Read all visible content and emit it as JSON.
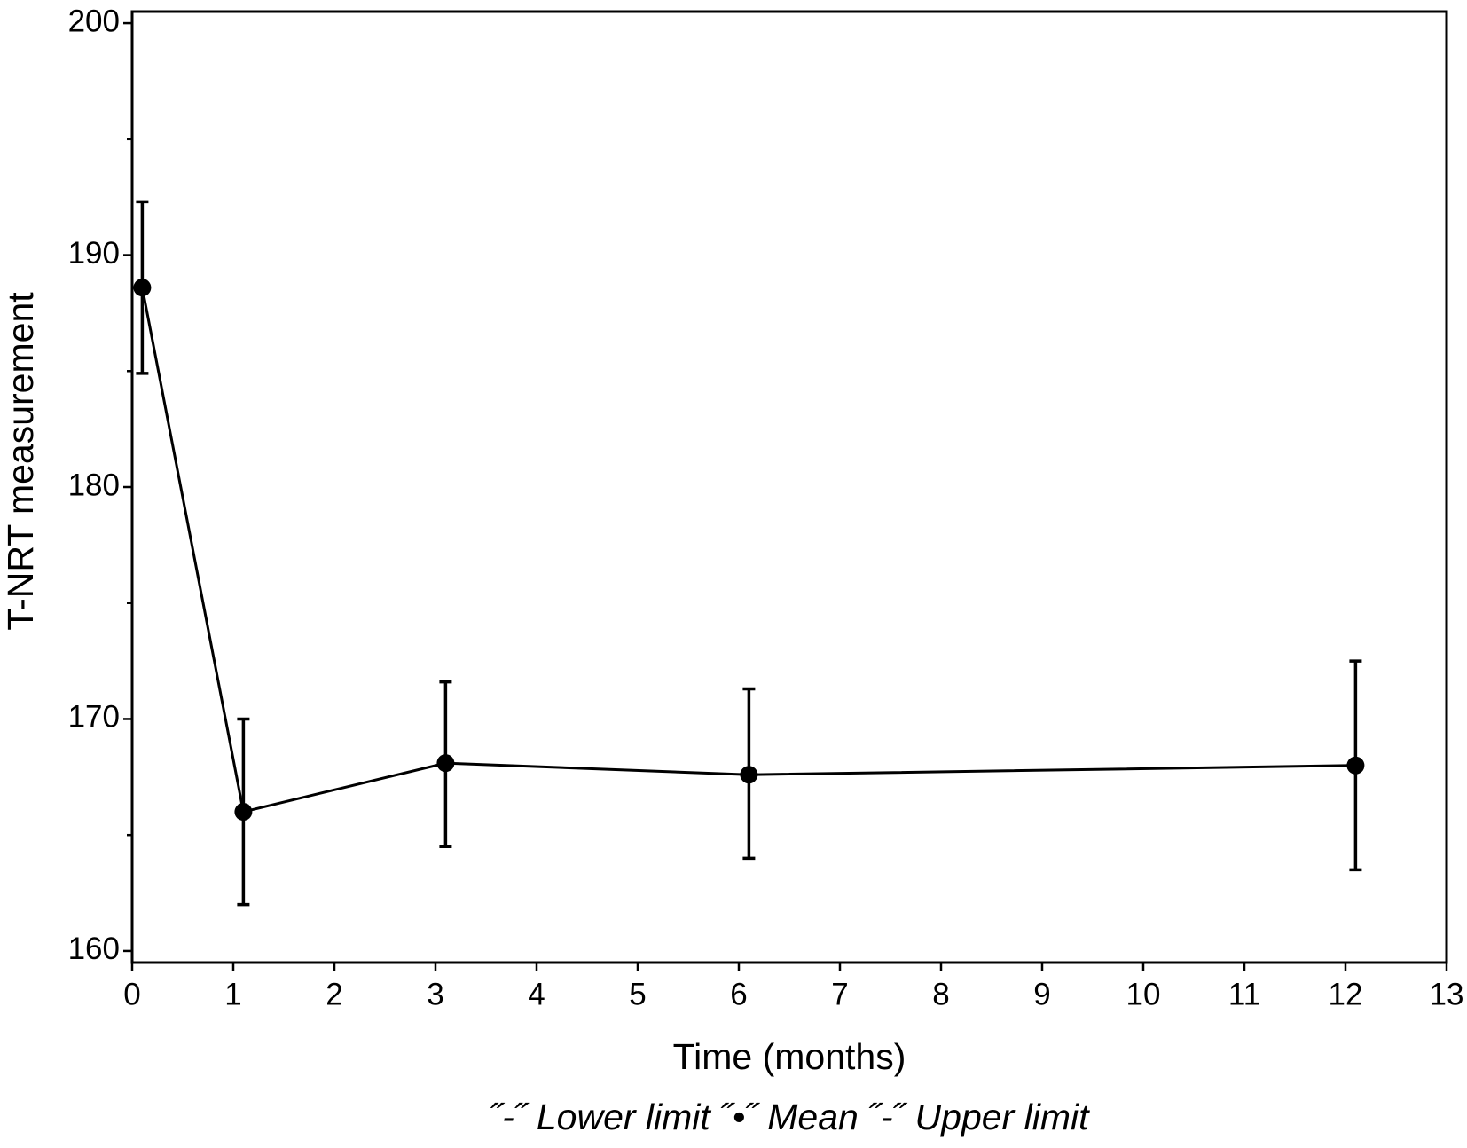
{
  "chart_data": {
    "type": "line",
    "x_label": "Time (months)",
    "y_label": "T-NRT measurement",
    "annotation": "˝-˝ Lower limit ˝•˝ Mean ˝-˝ Upper limit",
    "x": [
      0.1,
      1.1,
      3.1,
      6.1,
      12.1
    ],
    "series": [
      {
        "color": "#000000",
        "values": [
          188.6,
          166.0,
          168.1,
          167.6,
          168.0
        ],
        "lower": [
          184.9,
          162.0,
          164.5,
          164.0,
          163.5
        ],
        "upper": [
          192.3,
          170.0,
          171.6,
          171.3,
          172.5
        ]
      }
    ],
    "xlim": [
      0,
      13
    ],
    "xticks": [
      0,
      1,
      2,
      3,
      4,
      5,
      6,
      7,
      8,
      9,
      10,
      11,
      12,
      13
    ],
    "ylim": [
      159.5,
      200.5
    ],
    "yticks": [
      160,
      170,
      180,
      190,
      200
    ],
    "y_minor_ticks": [
      165,
      175,
      185,
      195
    ],
    "grid": false
  }
}
